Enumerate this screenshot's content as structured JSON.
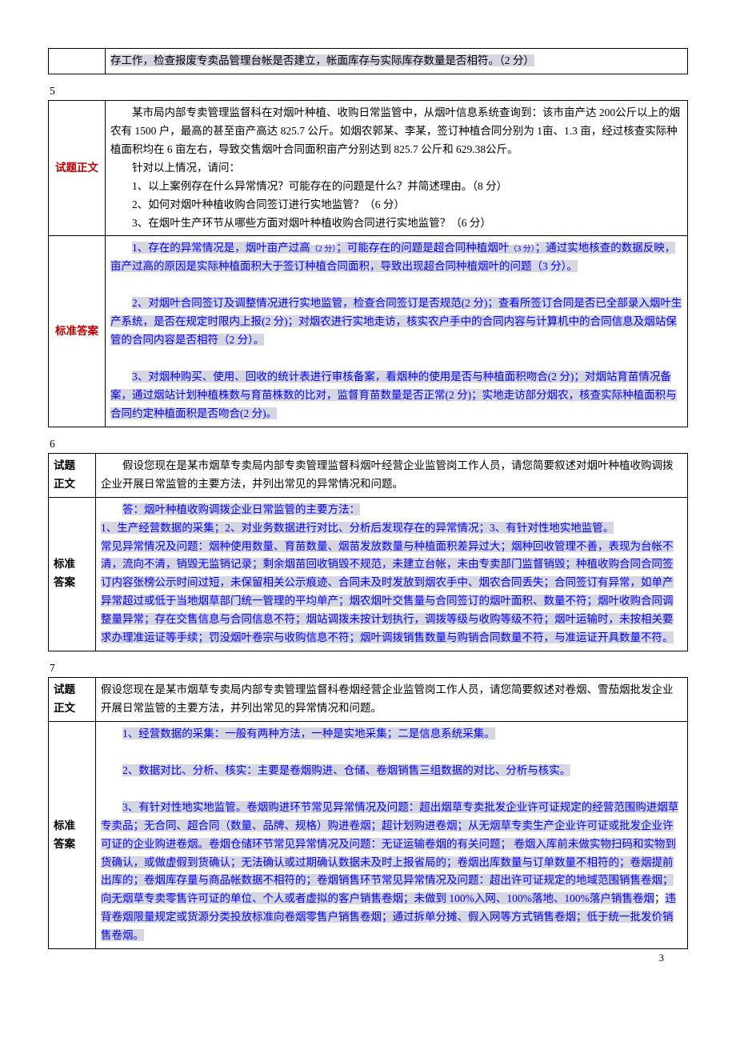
{
  "topFragment": {
    "text": "存工作，检查报废专卖品管理台帐是否建立，帐面库存与实际库存数量是否相符。（2 分）"
  },
  "q5": {
    "num": "5",
    "labelQ": "试题正文",
    "labelA": "标准答案",
    "q_p1": "某市局内部专卖管理监督科在对烟叶种植、收购日常监管中，从烟叶信息系统查询到：该市亩产达 200公斤以上的烟农有 1500 户，最高的甚至亩产高达 825.7 公斤。如烟农郭某、李某，签订种植合同分别为 1亩、1.3 亩，经过核查实际种植面积均在 6 亩左右，导致交售烟叶合同面积亩产分别达到 825.7 公斤和 629.38公斤。",
    "q_p2": "针对以上情况，请问：",
    "q_p3": "1、以上案例存在什么异常情况？可能存在的问题是什么？并简述理由。（8 分）",
    "q_p4": "2、如何对烟叶种植收购合同签订进行实地监管？（6 分）",
    "q_p5": "3、在烟叶生产环节从哪些方面对烟叶种植收购合同进行实地监管？（6 分）",
    "a_p1a": "1、存在的异常情况是，烟叶亩产过高",
    "a_p1b": "（2 分）",
    "a_p1c": "；可能存在的问题是超合同种植烟叶",
    "a_p1d": "（3 分）",
    "a_p1e": "；通过实地核查的数据反映，亩产过高的原因是实际种植面积大于签订种植合同面积，导致出现超合同种植烟叶的问题（3 分）。",
    "a_p2": "2、对烟叶合同签订及调整情况进行实地监管，检查合同签订是否规范(2 分)；查看所签订合同是否已全部录入烟叶生产系统，是否在规定时限内上报(2 分)；对烟农进行实地走访，核实农户手中的合同内容与计算机中的合同信息及烟站保管的合同内容是否相符（2 分）。",
    "a_p3": "3、对烟种购买、使用、回收的统计表进行审核备案，看烟种的使用是否与种植面积吻合(2 分)；对烟站育苗情况备案，通过烟站计划种植株数与育苗株数的比对，监督育苗数量是否正常(2 分)；实地走访部分烟农，核查实际种植面积与合同约定种植面积是否吻合(2 分)。"
  },
  "q6": {
    "num": "6",
    "labelQ1": "试题",
    "labelQ2": "正文",
    "labelA1": "标准",
    "labelA2": "答案",
    "q_text": "假设您现在是某市烟草专卖局内部专卖管理监督科烟叶经营企业监管岗工作人员，请您简要叙述对烟叶种植收购调拨企业开展日常监管的主要方法，并列出常见的异常情况和问题。",
    "a_p1": "答：烟叶种植收购调拨企业日常监管的主要方法：",
    "a_p2": "1、生产经营数据的采集；2、对业务数据进行对比、分析后发现存在的异常情况；3、有针对性地实地监管。",
    "a_p3": "常见异常情况及问题：烟种使用数量、育苗数量、烟苗发放数量与种植面积差异过大；烟种回收管理不善，表现为台帐不清，流向不清，销毁无监销记录；剩余烟苗回收销毁不规范，未建立台帐，未由专卖部门监督销毁；种植收购合同合同签订内容张榜公示时间过短，未保留相关公示痕迹、合同未及时发放到烟农手中、烟农合同丢失；合同签订有异常，如单产异常超过或低于当地烟草部门统一管理的平均单产；烟农烟叶交售量与合同签订的烟叶面积、数量不符；烟叶收购合同调整量异常；存在交售信息与合同信息不符；烟站调拨未按计划执行，调拨等级与收购等级不符；烟叶运输时，未按相关要求办理准运证等手续；罚没烟叶卷宗与收购信息不符；烟叶调拨销售数量与购销合同数量不符，与准运证开具数量不符。"
  },
  "q7": {
    "num": "7",
    "labelQ1": "试题",
    "labelQ2": "正文",
    "labelA1": "标准",
    "labelA2": "答案",
    "q_text": "假设您现在是某市烟草专卖局内部专卖管理监督科卷烟经营企业监管岗工作人员，请您简要叙述对卷烟、雪茄烟批发企业开展日常监管的主要方法，并列出常见的异常情况和问题。",
    "a_p1": "1、经营数据的采集：一般有两种方法，一种是实地采集；二是信息系统采集。",
    "a_p2": "2、数据对比、分析、核实：主要是卷烟购进、仓储、卷烟销售三组数据的对比、分析与核实。",
    "a_p3a": "3、有针对性地实地监管。卷烟购进环节常见异常情况及问题：超出烟草专卖批发企业许可证规定的经营范围购进烟草专卖品；无合同、超合同（数量、品牌、规格）购进卷烟；超计划购进卷烟；从无烟草专卖生产企业许可证或批发企业许可证的企业购进卷烟。卷烟仓储环节常见异常情况及问题：无证运输卷烟的有关问题； 卷烟入库前未做实物扫码和实物到货确认，或做虚假到货确认；无法确认或过期确认数据未及时上报省局的；卷烟出库数量与订单数量不相符的；卷烟提前出库的；卷烟库存量与商品帐数据不相符的；卷烟销售环节常见异常情况及问题：超出许可证规定的地域范围销售卷烟；向无烟草专卖零售许可证的单位、个人或者虚拟的客户销售卷烟；未做到 100%入网、100%落地、100%落户销售卷烟",
    "a_p3b": "违背卷烟限量规定或货源分类投放标准向卷烟零售户销售卷烟；通过拆单分摊、假入网等方式销售卷烟；低于统一批发价销售卷烟。"
  },
  "pageNum": "3"
}
